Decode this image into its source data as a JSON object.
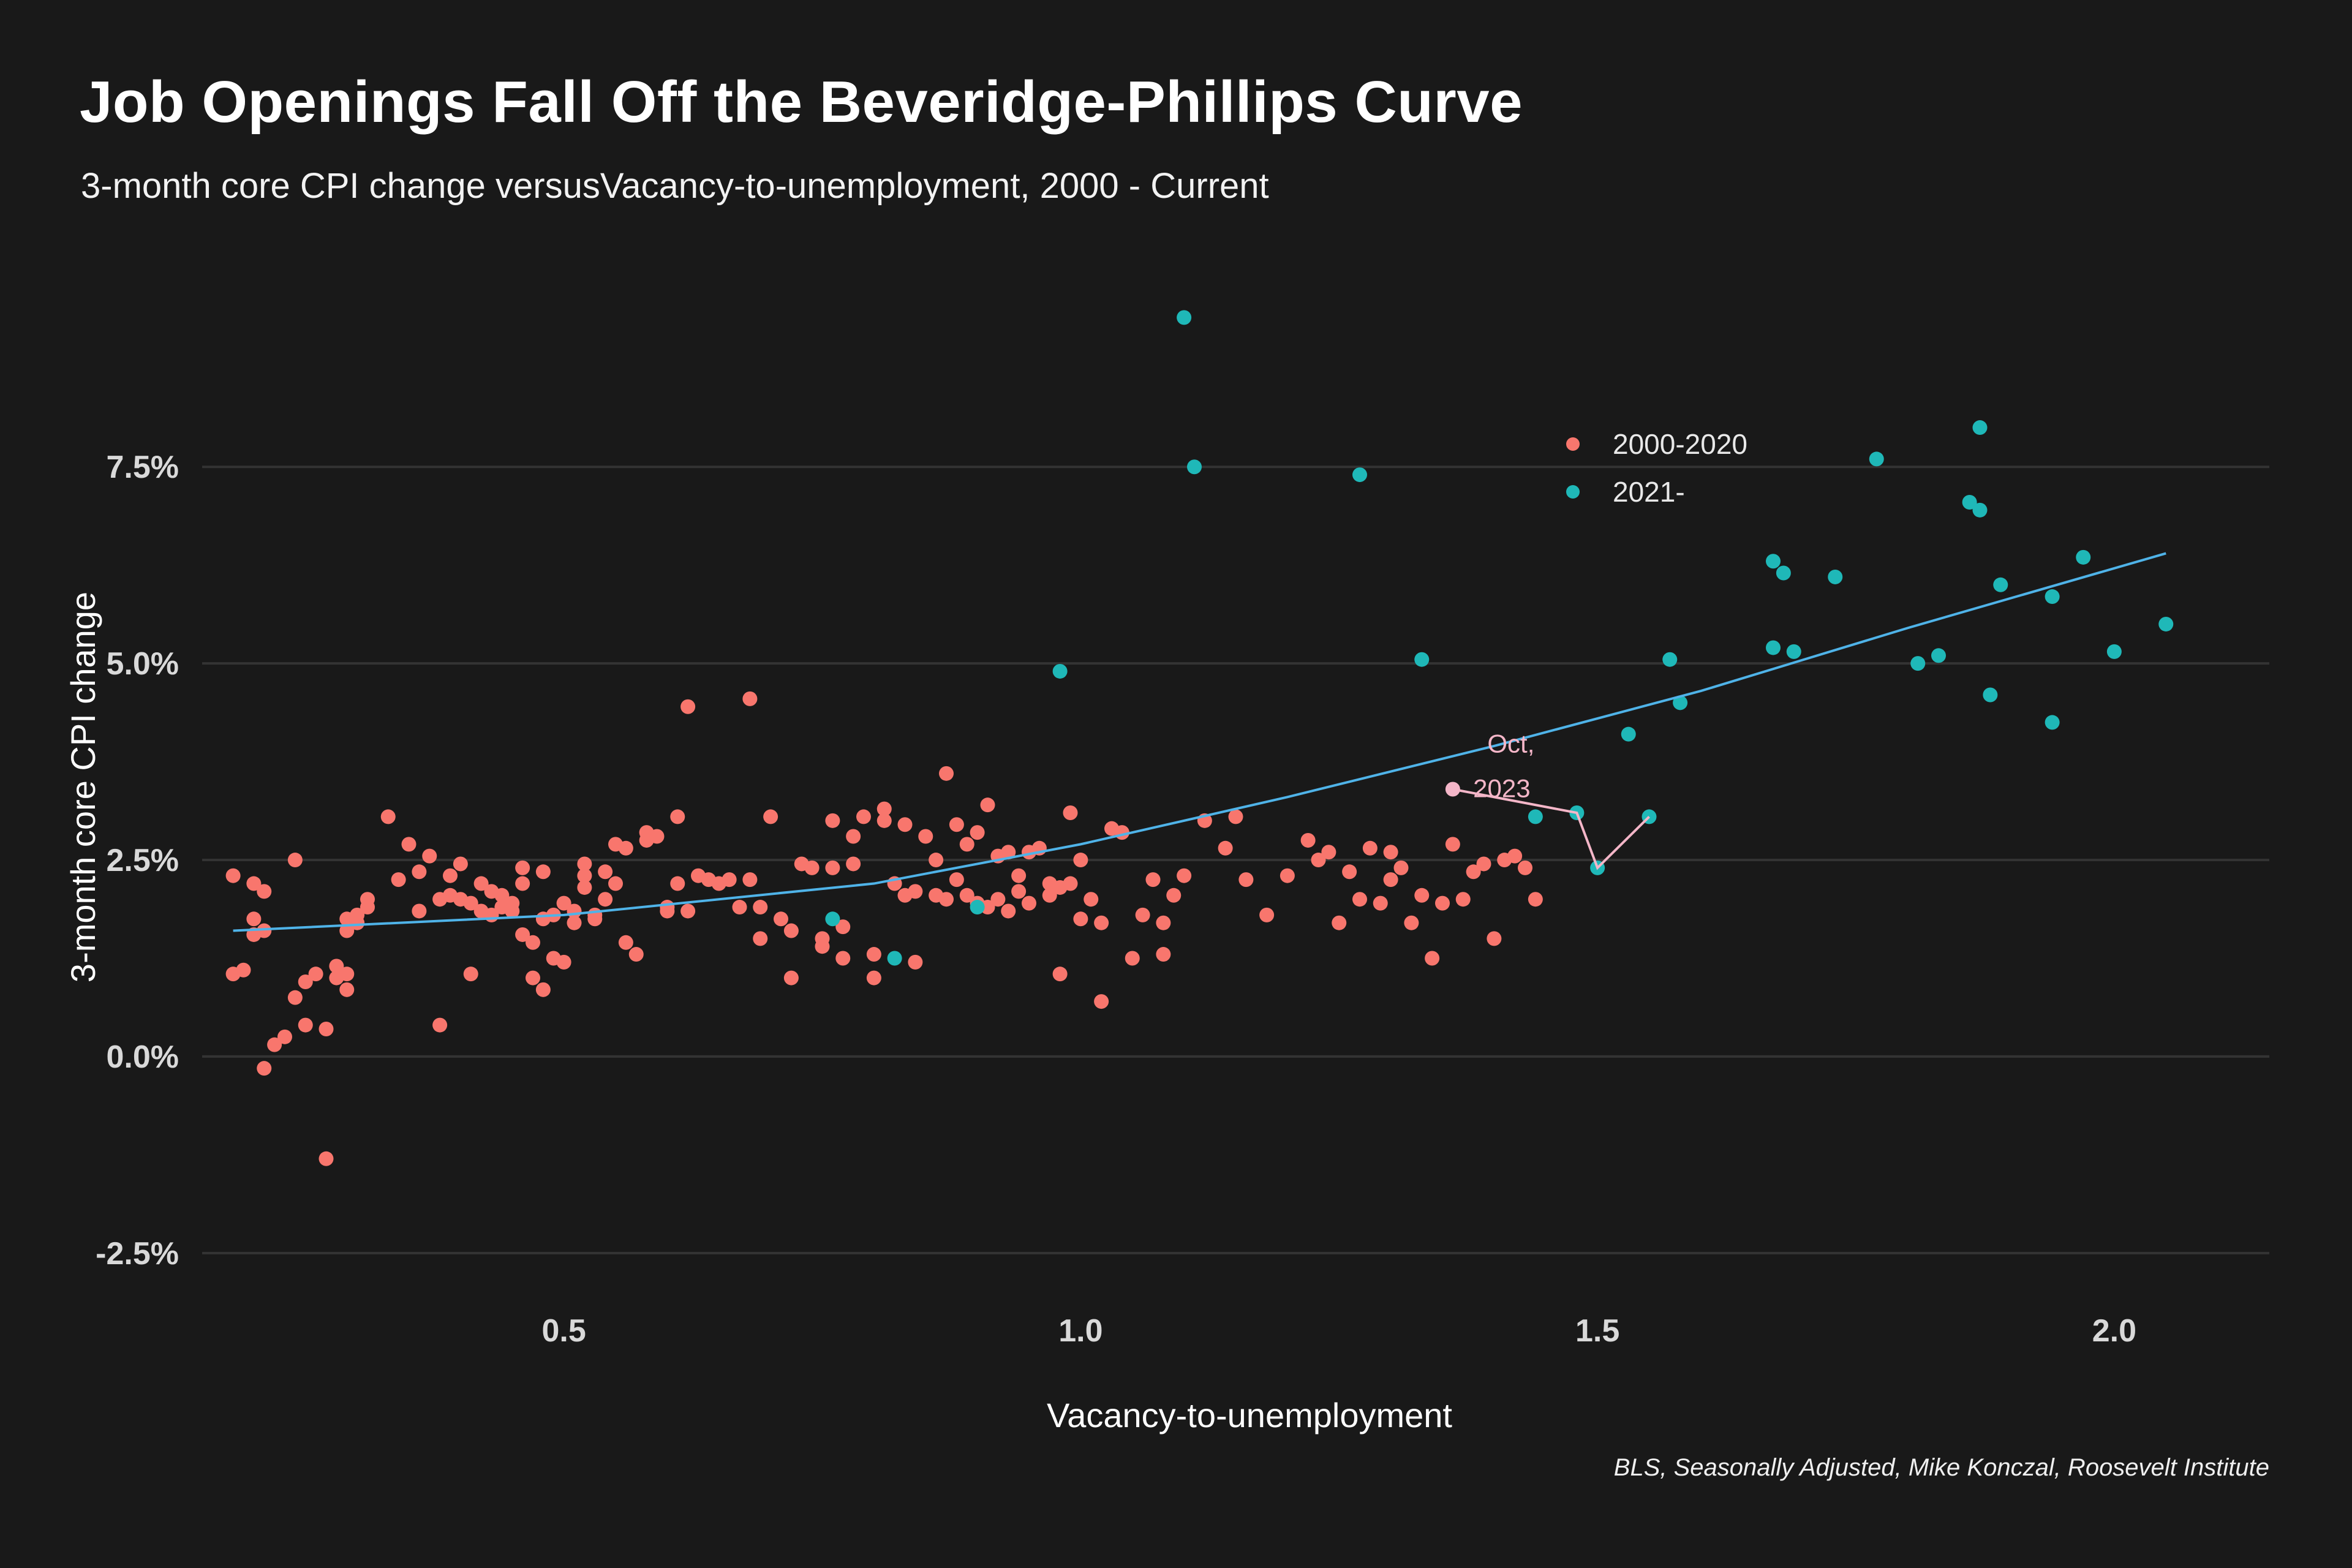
{
  "header": {
    "title": "Job Openings Fall Off the Beveridge-Phillips Curve",
    "subtitle": "3-month core CPI change versusVacancy-to-unemployment, 2000 - Current"
  },
  "caption": "BLS, Seasonally Adjusted, Mike Konczal, Roosevelt Institute",
  "colors": {
    "background": "#191919",
    "grid": "#333333",
    "series_2000_2020": "#f8766d",
    "series_2021": "#1fb8b8",
    "trend": "#4fb3e8",
    "highlight": "#f4b6c8"
  },
  "chart_data": {
    "type": "scatter",
    "title": "Job Openings Fall Off the Beveridge-Phillips Curve",
    "subtitle": "3-month core CPI change versusVacancy-to-unemployment, 2000 - Current",
    "xlabel": "Vacancy-to-unemployment",
    "ylabel": "3-month core CPI change",
    "xlim": [
      0.15,
      2.15
    ],
    "ylim": [
      -3.0,
      10.4
    ],
    "x_ticks": [
      0.5,
      1.0,
      1.5,
      2.0
    ],
    "x_tick_labels": [
      "0.5",
      "1.0",
      "1.5",
      "2.0"
    ],
    "y_ticks": [
      -2.5,
      0,
      2.5,
      5.0,
      7.5
    ],
    "y_tick_labels": [
      "-2.5%",
      "0.0%",
      "2.5%",
      "5.0%",
      "7.5%"
    ],
    "grid": "horizontal",
    "legend_position": "top-center",
    "series": [
      {
        "name": "2000-2020",
        "points": [
          [
            0.18,
            1.05
          ],
          [
            0.19,
            1.1
          ],
          [
            0.18,
            2.3
          ],
          [
            0.2,
            2.2
          ],
          [
            0.2,
            1.75
          ],
          [
            0.2,
            1.55
          ],
          [
            0.21,
            2.1
          ],
          [
            0.21,
            1.6
          ],
          [
            0.22,
            0.15
          ],
          [
            0.21,
            -0.15
          ],
          [
            0.23,
            0.25
          ],
          [
            0.24,
            0.75
          ],
          [
            0.24,
            2.5
          ],
          [
            0.25,
            0.4
          ],
          [
            0.25,
            0.95
          ],
          [
            0.26,
            1.05
          ],
          [
            0.27,
            0.35
          ],
          [
            0.27,
            -1.3
          ],
          [
            0.28,
            1.15
          ],
          [
            0.28,
            1.0
          ],
          [
            0.29,
            1.6
          ],
          [
            0.29,
            1.75
          ],
          [
            0.29,
            1.05
          ],
          [
            0.29,
            0.85
          ],
          [
            0.3,
            1.7
          ],
          [
            0.3,
            1.8
          ],
          [
            0.31,
            2.0
          ],
          [
            0.31,
            1.9
          ],
          [
            0.33,
            3.05
          ],
          [
            0.34,
            2.25
          ],
          [
            0.35,
            2.7
          ],
          [
            0.36,
            1.85
          ],
          [
            0.36,
            2.35
          ],
          [
            0.37,
            2.55
          ],
          [
            0.38,
            2.0
          ],
          [
            0.38,
            0.4
          ],
          [
            0.39,
            2.05
          ],
          [
            0.39,
            2.3
          ],
          [
            0.4,
            2.0
          ],
          [
            0.4,
            2.45
          ],
          [
            0.41,
            1.95
          ],
          [
            0.41,
            1.05
          ],
          [
            0.42,
            1.85
          ],
          [
            0.42,
            2.2
          ],
          [
            0.43,
            1.8
          ],
          [
            0.43,
            2.1
          ],
          [
            0.44,
            2.05
          ],
          [
            0.44,
            1.9
          ],
          [
            0.45,
            1.85
          ],
          [
            0.45,
            1.95
          ],
          [
            0.46,
            1.55
          ],
          [
            0.46,
            2.4
          ],
          [
            0.46,
            2.2
          ],
          [
            0.47,
            1.45
          ],
          [
            0.47,
            1.0
          ],
          [
            0.48,
            0.85
          ],
          [
            0.48,
            1.75
          ],
          [
            0.48,
            2.35
          ],
          [
            0.49,
            1.8
          ],
          [
            0.49,
            1.25
          ],
          [
            0.5,
            1.95
          ],
          [
            0.5,
            1.2
          ],
          [
            0.51,
            1.85
          ],
          [
            0.51,
            1.7
          ],
          [
            0.52,
            2.15
          ],
          [
            0.52,
            2.3
          ],
          [
            0.52,
            2.45
          ],
          [
            0.53,
            1.8
          ],
          [
            0.53,
            1.75
          ],
          [
            0.54,
            2.0
          ],
          [
            0.54,
            2.35
          ],
          [
            0.55,
            2.7
          ],
          [
            0.55,
            2.2
          ],
          [
            0.56,
            1.45
          ],
          [
            0.56,
            2.65
          ],
          [
            0.57,
            1.3
          ],
          [
            0.58,
            2.75
          ],
          [
            0.58,
            2.85
          ],
          [
            0.59,
            2.8
          ],
          [
            0.6,
            1.85
          ],
          [
            0.6,
            1.9
          ],
          [
            0.61,
            3.05
          ],
          [
            0.61,
            2.2
          ],
          [
            0.62,
            4.45
          ],
          [
            0.62,
            1.85
          ],
          [
            0.63,
            2.3
          ],
          [
            0.64,
            2.25
          ],
          [
            0.65,
            2.2
          ],
          [
            0.66,
            2.25
          ],
          [
            0.67,
            1.9
          ],
          [
            0.68,
            2.25
          ],
          [
            0.68,
            4.55
          ],
          [
            0.69,
            1.9
          ],
          [
            0.69,
            1.5
          ],
          [
            0.7,
            3.05
          ],
          [
            0.71,
            1.75
          ],
          [
            0.72,
            1.6
          ],
          [
            0.72,
            1.0
          ],
          [
            0.73,
            2.45
          ],
          [
            0.74,
            2.4
          ],
          [
            0.75,
            1.5
          ],
          [
            0.75,
            1.4
          ],
          [
            0.76,
            2.4
          ],
          [
            0.76,
            3.0
          ],
          [
            0.77,
            1.25
          ],
          [
            0.77,
            1.65
          ],
          [
            0.78,
            2.45
          ],
          [
            0.78,
            2.8
          ],
          [
            0.79,
            3.05
          ],
          [
            0.8,
            1.0
          ],
          [
            0.8,
            1.3
          ],
          [
            0.81,
            3.15
          ],
          [
            0.81,
            3.0
          ],
          [
            0.82,
            2.2
          ],
          [
            0.83,
            2.95
          ],
          [
            0.83,
            2.05
          ],
          [
            0.84,
            2.1
          ],
          [
            0.84,
            1.2
          ],
          [
            0.85,
            2.8
          ],
          [
            0.86,
            2.05
          ],
          [
            0.86,
            2.5
          ],
          [
            0.87,
            3.6
          ],
          [
            0.87,
            2.0
          ],
          [
            0.88,
            2.95
          ],
          [
            0.88,
            2.25
          ],
          [
            0.89,
            2.7
          ],
          [
            0.89,
            2.05
          ],
          [
            0.9,
            2.85
          ],
          [
            0.9,
            1.95
          ],
          [
            0.91,
            3.2
          ],
          [
            0.91,
            1.9
          ],
          [
            0.92,
            2.55
          ],
          [
            0.92,
            2.0
          ],
          [
            0.93,
            2.6
          ],
          [
            0.93,
            1.85
          ],
          [
            0.94,
            2.1
          ],
          [
            0.94,
            2.3
          ],
          [
            0.95,
            1.95
          ],
          [
            0.95,
            2.6
          ],
          [
            0.96,
            2.65
          ],
          [
            0.97,
            2.2
          ],
          [
            0.97,
            2.05
          ],
          [
            0.98,
            2.15
          ],
          [
            0.98,
            1.05
          ],
          [
            0.99,
            2.2
          ],
          [
            0.99,
            3.1
          ],
          [
            1.0,
            1.75
          ],
          [
            1.0,
            2.5
          ],
          [
            1.01,
            2.0
          ],
          [
            1.02,
            1.7
          ],
          [
            1.02,
            0.7
          ],
          [
            1.03,
            2.9
          ],
          [
            1.04,
            2.85
          ],
          [
            1.05,
            1.25
          ],
          [
            1.06,
            1.8
          ],
          [
            1.07,
            2.25
          ],
          [
            1.08,
            1.7
          ],
          [
            1.08,
            1.3
          ],
          [
            1.09,
            2.05
          ],
          [
            1.1,
            2.3
          ],
          [
            1.12,
            3.0
          ],
          [
            1.14,
            2.65
          ],
          [
            1.15,
            3.05
          ],
          [
            1.16,
            2.25
          ],
          [
            1.18,
            1.8
          ],
          [
            1.2,
            2.3
          ],
          [
            1.22,
            2.75
          ],
          [
            1.23,
            2.5
          ],
          [
            1.24,
            2.6
          ],
          [
            1.25,
            1.7
          ],
          [
            1.26,
            2.35
          ],
          [
            1.27,
            2.0
          ],
          [
            1.28,
            2.65
          ],
          [
            1.29,
            1.95
          ],
          [
            1.3,
            2.6
          ],
          [
            1.3,
            2.25
          ],
          [
            1.31,
            2.4
          ],
          [
            1.32,
            1.7
          ],
          [
            1.33,
            2.05
          ],
          [
            1.34,
            1.25
          ],
          [
            1.35,
            1.95
          ],
          [
            1.36,
            2.7
          ],
          [
            1.37,
            2.0
          ],
          [
            1.38,
            2.35
          ],
          [
            1.39,
            2.45
          ],
          [
            1.4,
            1.5
          ],
          [
            1.41,
            2.5
          ],
          [
            1.42,
            2.55
          ],
          [
            1.43,
            2.4
          ],
          [
            1.44,
            2.0
          ]
        ]
      },
      {
        "name": "2021-",
        "points": [
          [
            0.76,
            1.75
          ],
          [
            0.82,
            1.25
          ],
          [
            0.9,
            1.9
          ],
          [
            0.98,
            4.9
          ],
          [
            1.1,
            9.4
          ],
          [
            1.11,
            7.5
          ],
          [
            1.27,
            7.4
          ],
          [
            1.33,
            5.05
          ],
          [
            1.44,
            3.05
          ],
          [
            1.48,
            3.1
          ],
          [
            1.5,
            2.4
          ],
          [
            1.53,
            4.1
          ],
          [
            1.55,
            3.05
          ],
          [
            1.57,
            5.05
          ],
          [
            1.58,
            4.5
          ],
          [
            1.67,
            6.3
          ],
          [
            1.67,
            5.2
          ],
          [
            1.68,
            6.15
          ],
          [
            1.69,
            5.15
          ],
          [
            1.73,
            6.1
          ],
          [
            1.77,
            7.6
          ],
          [
            1.81,
            5.0
          ],
          [
            1.83,
            5.1
          ],
          [
            1.86,
            7.05
          ],
          [
            1.87,
            8.0
          ],
          [
            1.87,
            6.95
          ],
          [
            1.88,
            4.6
          ],
          [
            1.89,
            6.0
          ],
          [
            1.94,
            4.25
          ],
          [
            1.94,
            5.85
          ],
          [
            1.97,
            6.35
          ],
          [
            2.0,
            5.15
          ],
          [
            2.05,
            5.5
          ]
        ]
      }
    ],
    "trend": {
      "name": "fit",
      "points": [
        [
          0.18,
          1.6
        ],
        [
          0.5,
          1.8
        ],
        [
          0.8,
          2.2
        ],
        [
          1.0,
          2.7
        ],
        [
          1.2,
          3.3
        ],
        [
          1.4,
          3.95
        ],
        [
          1.6,
          4.65
        ],
        [
          1.8,
          5.45
        ],
        [
          2.05,
          6.4
        ]
      ]
    },
    "highlight_path": {
      "points": [
        [
          1.36,
          3.4
        ],
        [
          1.48,
          3.1
        ],
        [
          1.5,
          2.4
        ],
        [
          1.55,
          3.05
        ]
      ],
      "label_line1": "Oct,",
      "label_line2": "2023"
    }
  }
}
